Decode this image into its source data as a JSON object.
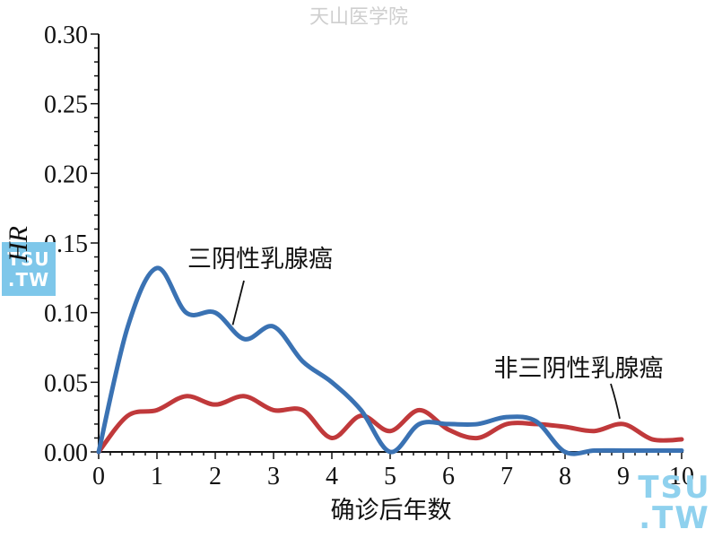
{
  "watermark": "天山医学院",
  "logo": {
    "line1": "TSU",
    "line2": ".TW"
  },
  "chart_data": {
    "type": "line",
    "xlabel": "确诊后年数",
    "ylabel": "HR",
    "xlim": [
      0,
      10
    ],
    "ylim": [
      0,
      0.3
    ],
    "xticks": [
      "0",
      "1",
      "2",
      "3",
      "4",
      "5",
      "6",
      "7",
      "8",
      "9",
      "10"
    ],
    "yticks": [
      "0.00",
      "0.05",
      "0.10",
      "0.15",
      "0.20",
      "0.25",
      "0.30"
    ],
    "grid": false,
    "series": [
      {
        "name": "三阴性乳腺癌",
        "color": "#3a72b3",
        "x": [
          0,
          0.5,
          1.0,
          1.5,
          2.0,
          2.5,
          3.0,
          3.5,
          4.0,
          4.5,
          5.0,
          5.5,
          6.0,
          6.5,
          7.0,
          7.5,
          8.0,
          8.5,
          9.0,
          9.5,
          10.0
        ],
        "y": [
          0.0,
          0.09,
          0.132,
          0.1,
          0.1,
          0.081,
          0.09,
          0.065,
          0.05,
          0.03,
          0.0,
          0.02,
          0.02,
          0.02,
          0.025,
          0.022,
          0.0,
          0.001,
          0.001,
          0.001,
          0.001
        ]
      },
      {
        "name": "非三阴性乳腺癌",
        "color": "#c0393b",
        "x": [
          0,
          0.5,
          1.0,
          1.5,
          2.0,
          2.5,
          3.0,
          3.5,
          4.0,
          4.5,
          5.0,
          5.5,
          6.0,
          6.5,
          7.0,
          7.5,
          8.0,
          8.5,
          9.0,
          9.5,
          10.0
        ],
        "y": [
          0.0,
          0.026,
          0.03,
          0.04,
          0.034,
          0.04,
          0.03,
          0.03,
          0.01,
          0.026,
          0.015,
          0.03,
          0.016,
          0.01,
          0.02,
          0.02,
          0.018,
          0.015,
          0.02,
          0.009,
          0.009
        ]
      }
    ],
    "annotations": [
      {
        "text": "三阴性乳腺癌",
        "series": 0,
        "at_x": 2.3
      },
      {
        "text": "非三阴性乳腺癌",
        "series": 1,
        "at_x": 9.0
      }
    ]
  }
}
